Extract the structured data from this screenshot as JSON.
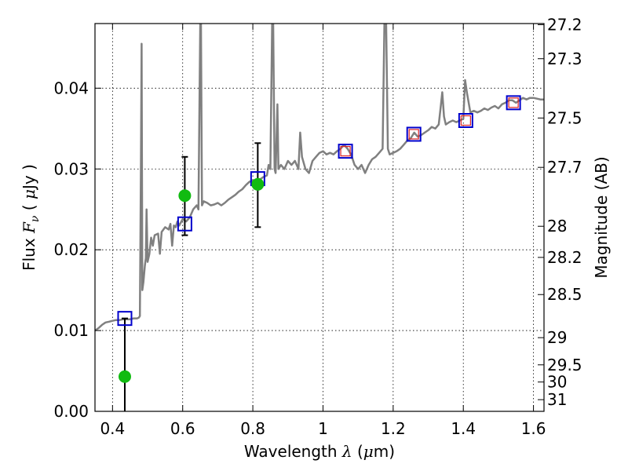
{
  "chart_data": {
    "type": "line",
    "xlabel": "Wavelength  λ (μm)",
    "ylabel": "Flux  Fν  ( μJy )",
    "y2label": "Magnitude (AB)",
    "xlim": [
      0.35,
      1.63
    ],
    "ylim": [
      0.0,
      0.048
    ],
    "grid": true,
    "x_ticks": [
      {
        "value": 0.4,
        "label": "0.4"
      },
      {
        "value": 0.6,
        "label": "0.6"
      },
      {
        "value": 0.8,
        "label": "0.8"
      },
      {
        "value": 1.0,
        "label": "1"
      },
      {
        "value": 1.2,
        "label": "1.2"
      },
      {
        "value": 1.4,
        "label": "1.4"
      },
      {
        "value": 1.6,
        "label": "1.6"
      }
    ],
    "y_ticks": [
      {
        "value": 0.0,
        "label": "0.00"
      },
      {
        "value": 0.01,
        "label": "0.01"
      },
      {
        "value": 0.02,
        "label": "0.02"
      },
      {
        "value": 0.03,
        "label": "0.03"
      },
      {
        "value": 0.04,
        "label": "0.04"
      }
    ],
    "y2_ticks": [
      {
        "value": 27.2,
        "label": "27.2"
      },
      {
        "value": 27.3,
        "label": "27.3"
      },
      {
        "value": 27.5,
        "label": "27.5"
      },
      {
        "value": 27.7,
        "label": "27.7"
      },
      {
        "value": 28.0,
        "label": "28"
      },
      {
        "value": 28.2,
        "label": "28.2"
      },
      {
        "value": 28.5,
        "label": "28.5"
      },
      {
        "value": 29.0,
        "label": "29"
      },
      {
        "value": 29.5,
        "label": "29.5"
      },
      {
        "value": 30.0,
        "label": "30"
      },
      {
        "value": 31.0,
        "label": "31"
      }
    ],
    "colors": {
      "spectrum": "#808080",
      "model_box": "#0000cc",
      "model_box_inner": "#dd2222",
      "observed": "#11bb11",
      "errorbar": "#000000"
    },
    "spectrum": [
      [
        0.35,
        0.01
      ],
      [
        0.36,
        0.0103
      ],
      [
        0.37,
        0.0107
      ],
      [
        0.38,
        0.011
      ],
      [
        0.39,
        0.0111
      ],
      [
        0.4,
        0.0112
      ],
      [
        0.41,
        0.0113
      ],
      [
        0.42,
        0.0113
      ],
      [
        0.43,
        0.0114
      ],
      [
        0.44,
        0.0114
      ],
      [
        0.45,
        0.0114
      ],
      [
        0.46,
        0.0115
      ],
      [
        0.47,
        0.0115
      ],
      [
        0.475,
        0.0116
      ],
      [
        0.478,
        0.0118
      ],
      [
        0.481,
        0.03
      ],
      [
        0.483,
        0.0455
      ],
      [
        0.485,
        0.015
      ],
      [
        0.488,
        0.016
      ],
      [
        0.492,
        0.018
      ],
      [
        0.495,
        0.019
      ],
      [
        0.497,
        0.025
      ],
      [
        0.5,
        0.0185
      ],
      [
        0.505,
        0.0195
      ],
      [
        0.51,
        0.0215
      ],
      [
        0.515,
        0.0205
      ],
      [
        0.52,
        0.0218
      ],
      [
        0.53,
        0.022
      ],
      [
        0.535,
        0.0195
      ],
      [
        0.54,
        0.0222
      ],
      [
        0.55,
        0.0228
      ],
      [
        0.56,
        0.0225
      ],
      [
        0.565,
        0.0232
      ],
      [
        0.57,
        0.0205
      ],
      [
        0.575,
        0.023
      ],
      [
        0.58,
        0.0228
      ],
      [
        0.585,
        0.0235
      ],
      [
        0.59,
        0.023
      ],
      [
        0.6,
        0.0238
      ],
      [
        0.61,
        0.0235
      ],
      [
        0.62,
        0.024
      ],
      [
        0.63,
        0.025
      ],
      [
        0.64,
        0.0255
      ],
      [
        0.645,
        0.025
      ],
      [
        0.65,
        0.048
      ],
      [
        0.652,
        0.048
      ],
      [
        0.655,
        0.0255
      ],
      [
        0.66,
        0.026
      ],
      [
        0.67,
        0.0258
      ],
      [
        0.68,
        0.0255
      ],
      [
        0.69,
        0.0256
      ],
      [
        0.7,
        0.0258
      ],
      [
        0.71,
        0.0255
      ],
      [
        0.72,
        0.0258
      ],
      [
        0.73,
        0.0262
      ],
      [
        0.74,
        0.0265
      ],
      [
        0.75,
        0.0268
      ],
      [
        0.76,
        0.0272
      ],
      [
        0.77,
        0.0275
      ],
      [
        0.78,
        0.028
      ],
      [
        0.79,
        0.0284
      ],
      [
        0.8,
        0.0286
      ],
      [
        0.81,
        0.0285
      ],
      [
        0.82,
        0.0287
      ],
      [
        0.83,
        0.029
      ],
      [
        0.84,
        0.0292
      ],
      [
        0.845,
        0.0305
      ],
      [
        0.85,
        0.03
      ],
      [
        0.855,
        0.048
      ],
      [
        0.858,
        0.048
      ],
      [
        0.862,
        0.03
      ],
      [
        0.865,
        0.0295
      ],
      [
        0.87,
        0.038
      ],
      [
        0.873,
        0.03
      ],
      [
        0.88,
        0.0305
      ],
      [
        0.89,
        0.03
      ],
      [
        0.9,
        0.031
      ],
      [
        0.91,
        0.0305
      ],
      [
        0.92,
        0.031
      ],
      [
        0.93,
        0.03
      ],
      [
        0.935,
        0.0345
      ],
      [
        0.94,
        0.0315
      ],
      [
        0.95,
        0.03
      ],
      [
        0.96,
        0.0295
      ],
      [
        0.97,
        0.031
      ],
      [
        0.98,
        0.0315
      ],
      [
        0.99,
        0.032
      ],
      [
        1.0,
        0.0322
      ],
      [
        1.01,
        0.0318
      ],
      [
        1.02,
        0.032
      ],
      [
        1.03,
        0.0318
      ],
      [
        1.04,
        0.0322
      ],
      [
        1.05,
        0.0325
      ],
      [
        1.06,
        0.033
      ],
      [
        1.07,
        0.0325
      ],
      [
        1.08,
        0.0318
      ],
      [
        1.09,
        0.0305
      ],
      [
        1.1,
        0.03
      ],
      [
        1.11,
        0.0305
      ],
      [
        1.12,
        0.0295
      ],
      [
        1.13,
        0.0305
      ],
      [
        1.14,
        0.0312
      ],
      [
        1.15,
        0.0315
      ],
      [
        1.16,
        0.032
      ],
      [
        1.17,
        0.0325
      ],
      [
        1.175,
        0.048
      ],
      [
        1.18,
        0.048
      ],
      [
        1.185,
        0.0325
      ],
      [
        1.19,
        0.0318
      ],
      [
        1.2,
        0.032
      ],
      [
        1.21,
        0.0322
      ],
      [
        1.22,
        0.0325
      ],
      [
        1.23,
        0.033
      ],
      [
        1.24,
        0.0335
      ],
      [
        1.25,
        0.0338
      ],
      [
        1.26,
        0.0345
      ],
      [
        1.27,
        0.034
      ],
      [
        1.28,
        0.0342
      ],
      [
        1.29,
        0.0345
      ],
      [
        1.3,
        0.0348
      ],
      [
        1.31,
        0.0352
      ],
      [
        1.32,
        0.035
      ],
      [
        1.33,
        0.0355
      ],
      [
        1.335,
        0.0375
      ],
      [
        1.34,
        0.0395
      ],
      [
        1.345,
        0.0365
      ],
      [
        1.35,
        0.0355
      ],
      [
        1.36,
        0.0358
      ],
      [
        1.37,
        0.036
      ],
      [
        1.38,
        0.0358
      ],
      [
        1.39,
        0.036
      ],
      [
        1.4,
        0.0362
      ],
      [
        1.405,
        0.041
      ],
      [
        1.41,
        0.0395
      ],
      [
        1.42,
        0.037
      ],
      [
        1.43,
        0.0372
      ],
      [
        1.44,
        0.037
      ],
      [
        1.45,
        0.0372
      ],
      [
        1.46,
        0.0375
      ],
      [
        1.47,
        0.0373
      ],
      [
        1.48,
        0.0376
      ],
      [
        1.49,
        0.0378
      ],
      [
        1.5,
        0.0375
      ],
      [
        1.51,
        0.038
      ],
      [
        1.52,
        0.0382
      ],
      [
        1.53,
        0.0385
      ],
      [
        1.54,
        0.0385
      ],
      [
        1.55,
        0.0382
      ],
      [
        1.56,
        0.0385
      ],
      [
        1.57,
        0.0388
      ],
      [
        1.58,
        0.0386
      ],
      [
        1.59,
        0.0388
      ],
      [
        1.6,
        0.0388
      ],
      [
        1.61,
        0.0387
      ],
      [
        1.62,
        0.0386
      ],
      [
        1.63,
        0.0386
      ]
    ],
    "model_points": [
      {
        "x": 0.435,
        "y": 0.0115
      },
      {
        "x": 0.606,
        "y": 0.0232
      },
      {
        "x": 0.814,
        "y": 0.0288
      },
      {
        "x": 1.064,
        "y": 0.0322
      },
      {
        "x": 1.259,
        "y": 0.0343
      },
      {
        "x": 1.407,
        "y": 0.036
      },
      {
        "x": 1.543,
        "y": 0.0382
      }
    ],
    "observed_points": [
      {
        "x": 0.435,
        "y": 0.0043,
        "ylow": 0.0,
        "yhigh": 0.0115
      },
      {
        "x": 0.606,
        "y": 0.0267,
        "ylow": 0.0218,
        "yhigh": 0.0315
      },
      {
        "x": 0.814,
        "y": 0.0281,
        "ylow": 0.0228,
        "yhigh": 0.0332
      }
    ]
  }
}
